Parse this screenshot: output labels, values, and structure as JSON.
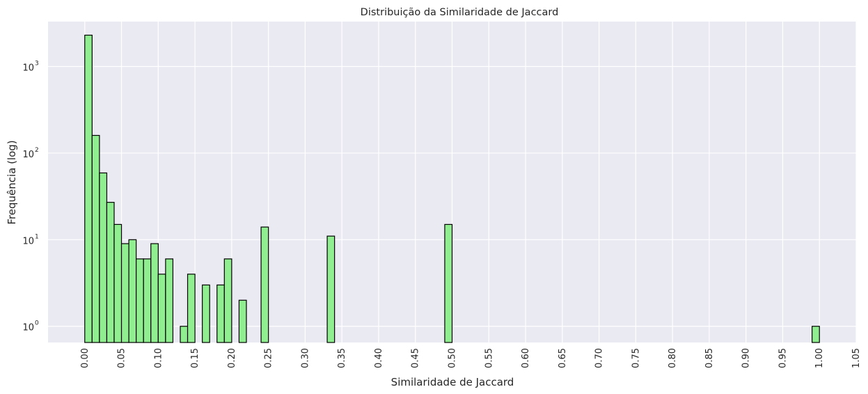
{
  "chart_data": {
    "type": "bar",
    "title": "Distribuição da Similaridade de Jaccard",
    "xlabel": "Similaridade de Jaccard",
    "ylabel": "Frequência (log)",
    "y_scale": "log",
    "xlim": [
      -0.05,
      1.05
    ],
    "ylim": [
      0.65,
      3300
    ],
    "bin_width": 0.01,
    "x_ticks": [
      "0.00",
      "0.05",
      "0.10",
      "0.15",
      "0.20",
      "0.25",
      "0.30",
      "0.35",
      "0.40",
      "0.45",
      "0.50",
      "0.55",
      "0.60",
      "0.65",
      "0.70",
      "0.75",
      "0.80",
      "0.85",
      "0.90",
      "0.95",
      "1.00",
      "1.05"
    ],
    "y_ticks": [
      {
        "base": "10",
        "exp": "0",
        "value": 1
      },
      {
        "base": "10",
        "exp": "1",
        "value": 10
      },
      {
        "base": "10",
        "exp": "2",
        "value": 100
      },
      {
        "base": "10",
        "exp": "3",
        "value": 1000
      }
    ],
    "bars": [
      {
        "x": 0.0,
        "value": 2300
      },
      {
        "x": 0.01,
        "value": 160
      },
      {
        "x": 0.02,
        "value": 59
      },
      {
        "x": 0.03,
        "value": 27
      },
      {
        "x": 0.04,
        "value": 15
      },
      {
        "x": 0.05,
        "value": 9
      },
      {
        "x": 0.06,
        "value": 10
      },
      {
        "x": 0.07,
        "value": 6
      },
      {
        "x": 0.08,
        "value": 6
      },
      {
        "x": 0.09,
        "value": 9
      },
      {
        "x": 0.1,
        "value": 4
      },
      {
        "x": 0.11,
        "value": 6
      },
      {
        "x": 0.13,
        "value": 1
      },
      {
        "x": 0.14,
        "value": 4
      },
      {
        "x": 0.16,
        "value": 3
      },
      {
        "x": 0.18,
        "value": 3
      },
      {
        "x": 0.19,
        "value": 6
      },
      {
        "x": 0.21,
        "value": 2
      },
      {
        "x": 0.24,
        "value": 14
      },
      {
        "x": 0.33,
        "value": 11
      },
      {
        "x": 0.49,
        "value": 15
      },
      {
        "x": 0.99,
        "value": 1
      }
    ],
    "grid": true,
    "colors": {
      "background": "#eaeaf2",
      "grid": "#ffffff",
      "bar_fill": "#90ee90",
      "bar_edge": "#000000",
      "text": "#262626"
    }
  }
}
